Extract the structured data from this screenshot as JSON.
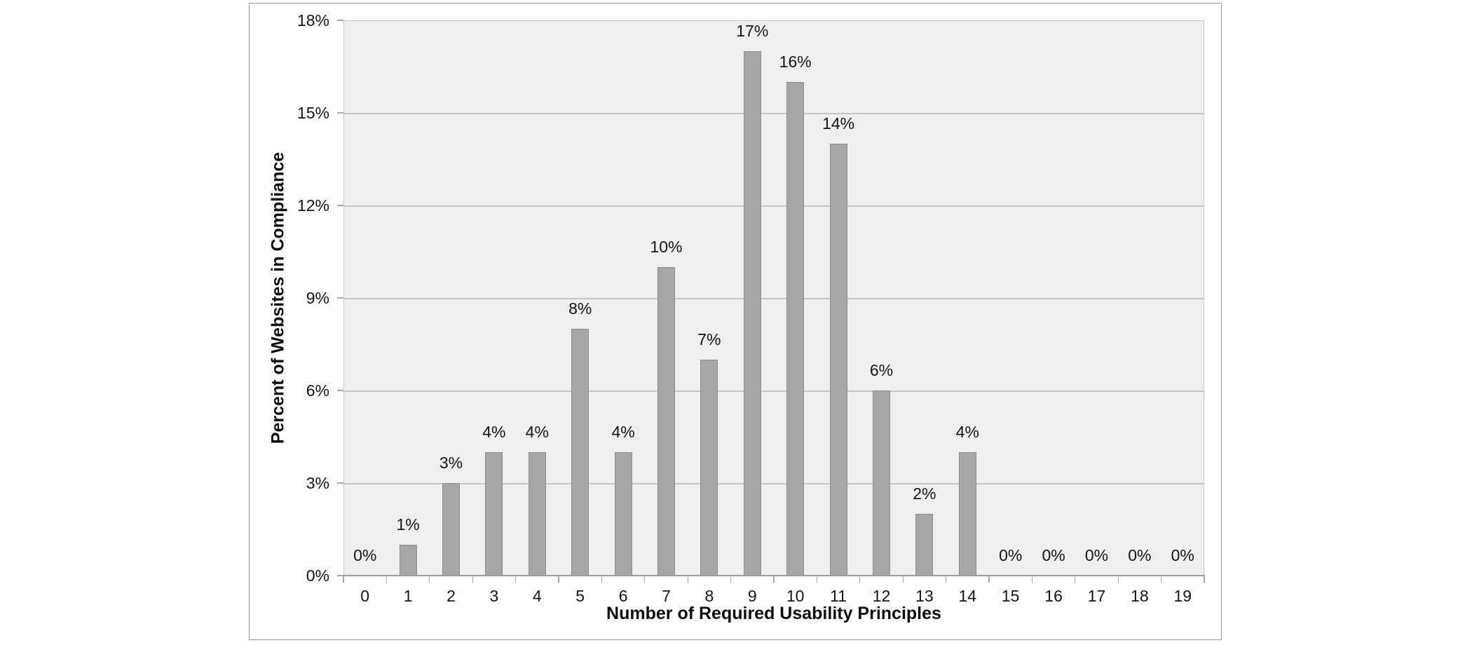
{
  "chart_data": {
    "type": "bar",
    "title": "",
    "xlabel": "Number of Required Usability Principles",
    "ylabel": "Percent of Websites in Compliance",
    "categories": [
      "0",
      "1",
      "2",
      "3",
      "4",
      "5",
      "6",
      "7",
      "8",
      "9",
      "10",
      "11",
      "12",
      "13",
      "14",
      "15",
      "16",
      "17",
      "18",
      "19"
    ],
    "values": [
      0,
      1,
      3,
      4,
      4,
      8,
      4,
      10,
      7,
      17,
      16,
      14,
      6,
      2,
      4,
      0,
      0,
      0,
      0,
      0
    ],
    "data_labels": [
      "0%",
      "1%",
      "3%",
      "4%",
      "4%",
      "8%",
      "4%",
      "10%",
      "7%",
      "17%",
      "16%",
      "14%",
      "6%",
      "2%",
      "4%",
      "0%",
      "0%",
      "0%",
      "0%",
      "0%"
    ],
    "ylim": [
      0,
      18
    ],
    "yticks": [
      0,
      3,
      6,
      9,
      12,
      15,
      18
    ],
    "ytick_labels": [
      "0%",
      "3%",
      "6%",
      "9%",
      "12%",
      "15%",
      "18%"
    ],
    "grid": "horizontal",
    "legend": "none",
    "colors": {
      "bar_fill": "#a6a6a6",
      "bar_border": "#8b8b8b",
      "plot_background": "#efefef",
      "gridline": "#c5c5c5",
      "axis_line": "#9e9e9e",
      "panel_border": "#979797",
      "text": "#141414"
    }
  }
}
